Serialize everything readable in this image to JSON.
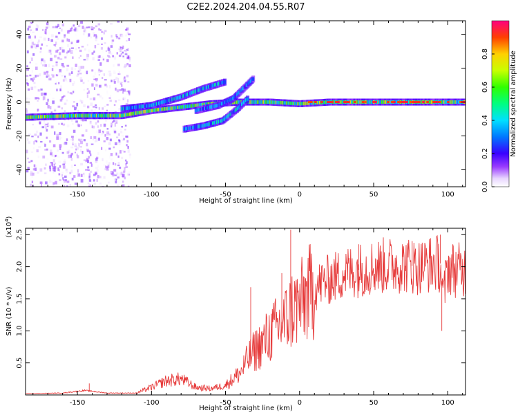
{
  "title": "C2E2.2024.204.04.55.R07",
  "colors": {
    "snr_line": "#e63a3a",
    "axis": "#000000",
    "background": "#ffffff"
  },
  "chart_data": [
    {
      "type": "heatmap",
      "name": "spectrogram",
      "xlabel": "Height of straight line (km)",
      "ylabel": "Frequency (Hz)",
      "xlim": [
        -185,
        112
      ],
      "ylim": [
        -50,
        48
      ],
      "xticks": [
        -150,
        -100,
        -50,
        0,
        50,
        100
      ],
      "xtick_labels": [
        "-150",
        "-100",
        "-50",
        "0",
        "50",
        "100"
      ],
      "yticks": [
        -40,
        -20,
        0,
        20,
        40
      ],
      "ytick_labels": [
        "-40",
        "-20",
        "0",
        "20",
        "40"
      ],
      "colorbar": {
        "label": "Normalized spectral amplitude",
        "range": [
          0,
          1
        ],
        "ticks": [
          0.0,
          0.2,
          0.4,
          0.6,
          0.8
        ],
        "tick_labels": [
          "0.0",
          "0.2",
          "0.4",
          "0.6",
          "0.8"
        ]
      },
      "ridges": [
        {
          "name": "main-trace",
          "points": [
            [
              -185,
              -9
            ],
            [
              -150,
              -8
            ],
            [
              -120,
              -8
            ],
            [
              -100,
              -5
            ],
            [
              -80,
              -3
            ],
            [
              -60,
              -1
            ],
            [
              -40,
              0
            ],
            [
              -20,
              0
            ],
            [
              0,
              -1
            ],
            [
              20,
              0
            ],
            [
              60,
              0
            ],
            [
              112,
              0
            ]
          ],
          "amplitude": 0.55
        },
        {
          "name": "upper-branch",
          "points": [
            [
              -120,
              -4
            ],
            [
              -100,
              -2
            ],
            [
              -80,
              3
            ],
            [
              -65,
              8
            ],
            [
              -50,
              12
            ]
          ],
          "amplitude": 0.35
        },
        {
          "name": "middle-branch",
          "points": [
            [
              -70,
              -5
            ],
            [
              -55,
              -2
            ],
            [
              -45,
              2
            ],
            [
              -38,
              8
            ],
            [
              -31,
              14
            ]
          ],
          "amplitude": 0.3
        },
        {
          "name": "lower-branch",
          "points": [
            [
              -78,
              -16
            ],
            [
              -65,
              -14
            ],
            [
              -52,
              -11
            ],
            [
              -42,
              -4
            ],
            [
              -35,
              2
            ]
          ],
          "amplitude": 0.35
        }
      ]
    },
    {
      "type": "line",
      "name": "snr",
      "xlabel": "Height of straight line (km)",
      "ylabel": "SNR (10 * v/v)",
      "y_multiplier": "(x10",
      "y_multiplier_exp": "4",
      "y_multiplier_close": ")",
      "xlim": [
        -185,
        112
      ],
      "ylim": [
        0,
        2.6
      ],
      "xticks": [
        -150,
        -100,
        -50,
        0,
        50,
        100
      ],
      "xtick_labels": [
        "-150",
        "-100",
        "-50",
        "0",
        "50",
        "100"
      ],
      "yticks": [
        0.5,
        1.0,
        1.5,
        2.0,
        2.5
      ],
      "ytick_labels": [
        "0.5",
        "1.0",
        "1.5",
        "2.0",
        "2.5"
      ],
      "x": [
        -185,
        -160,
        -145,
        -130,
        -110,
        -100,
        -90,
        -80,
        -70,
        -60,
        -50,
        -45,
        -40,
        -35,
        -30,
        -25,
        -20,
        -15,
        -10,
        -7,
        -5,
        0,
        5,
        10,
        15,
        20,
        25,
        30,
        40,
        50,
        60,
        70,
        80,
        90,
        95,
        97,
        100,
        105,
        112
      ],
      "values": [
        0.02,
        0.03,
        0.07,
        0.03,
        0.03,
        0.12,
        0.22,
        0.25,
        0.12,
        0.1,
        0.15,
        0.25,
        0.35,
        0.55,
        0.7,
        0.8,
        0.95,
        1.05,
        1.15,
        1.25,
        1.35,
        1.4,
        1.55,
        1.65,
        1.75,
        1.8,
        1.85,
        1.9,
        1.95,
        2.0,
        2.02,
        2.03,
        2.0,
        2.05,
        2.05,
        1.5,
        2.0,
        1.95,
        1.95
      ],
      "spikes": [
        [
          -142,
          0.18
        ],
        [
          -6,
          2.58
        ],
        [
          -12,
          1.9
        ],
        [
          -33,
          1.68
        ],
        [
          95,
          2.5
        ],
        [
          96,
          1.0
        ],
        [
          76,
          2.4
        ],
        [
          40,
          2.35
        ]
      ]
    }
  ]
}
